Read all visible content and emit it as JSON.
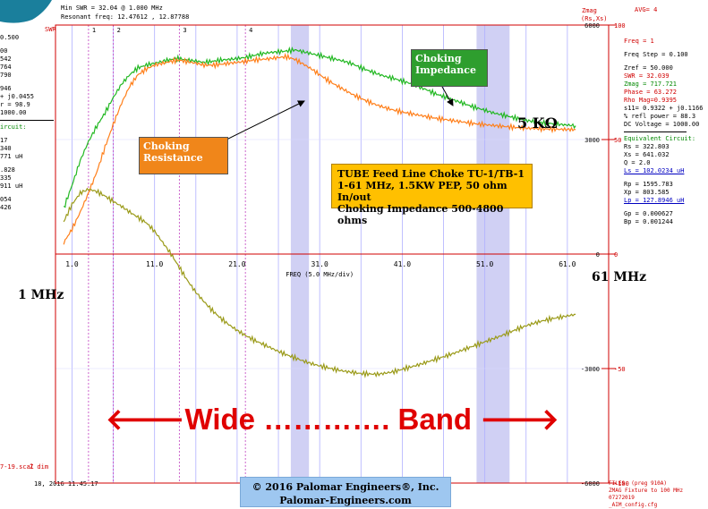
{
  "header": {
    "min_swr": "Min SWR = 32.04 @ 1.000 MHz",
    "resonant": "Resonant freq: 12.47612 , 12.87788",
    "swr_label": "SWR",
    "zmag_label": "Zmag",
    "rsxs_label": "(Rs,Xs)",
    "avg": "AVG= 4"
  },
  "left_panel": {
    "rows": [
      {
        "text": "0.500",
        "color": "black"
      },
      {
        "text": "00",
        "color": "black"
      },
      {
        "text": "542",
        "color": "black"
      },
      {
        "text": "764",
        "color": "black"
      },
      {
        "text": "790",
        "color": "black"
      },
      {
        "text": "946",
        "color": "black"
      },
      {
        "text": "+ j0.0455",
        "color": "black"
      },
      {
        "text": "r = 98.9",
        "color": "black"
      },
      {
        "text": "1000.00",
        "color": "black"
      },
      {
        "text": "ircuit:",
        "color": "green"
      },
      {
        "text": "17",
        "color": "black"
      },
      {
        "text": "340",
        "color": "black"
      },
      {
        "text": "771 uH",
        "color": "black"
      },
      {
        "text": ".828",
        "color": "black"
      },
      {
        "text": "335",
        "color": "black"
      },
      {
        "text": "911 uH",
        "color": "black"
      },
      {
        "text": "054",
        "color": "black"
      },
      {
        "text": "426",
        "color": "black"
      }
    ],
    "footer": "7-19.scal",
    "footer2": "Z dim",
    "date": "18, 2016  11:45:17"
  },
  "right_panel": {
    "freq": "Freq = 1",
    "freq_step": "Freq Step = 0.100",
    "zref": "Zref =  50.000",
    "swr": "SWR = 32.039",
    "zmag": "Zmag = 717.721",
    "phase": "Phase =  63.272",
    "rho": "Rho Mag=0.9395",
    "s11": "s11= 0.9322 + j0.1166",
    "refl": "% refl power = 88.3",
    "dc": "DC Voltage = 1000.00",
    "equiv": "Equivalent Circuit:",
    "rs": "Rs = 322.803",
    "xs": "Xs = 641.032",
    "q": "Q = 2.0",
    "ls": "Ls = 102.0234 uH",
    "rp": "Rp = 1595.783",
    "xp": "Xp = 803.585",
    "lp": "Lp = 127.8946 uH",
    "gp": "Gp = 0.000627",
    "bp": "Bp = 0.001244"
  },
  "files": {
    "line1": "FILES: (preg 910A)",
    "line2": "ZMAG Fixture to 100 MHz 07272019",
    "line3": "_AIM_config.cfg"
  },
  "annotations": {
    "choking_impedance": "Choking\nImpedance",
    "choking_resistance": "Choking\nResistance",
    "five_k": "5 KΩ",
    "one_mhz": "1 MHz",
    "sixty_one_mhz": "61 MHz",
    "wide_band": "🡐Wide …………. Band 🡒",
    "choke_box_lines": [
      "TUBE Feed Line Choke TU-1/TB-1",
      "1-61 MHz, 1.5KW PEP, 50 ohm In/out",
      "Choking Impedance 500-4800 ohms"
    ],
    "copyright_line1": "© 2016 Palomar Engineers®, Inc.",
    "copyright_line2": "Palomar-Engineers.com"
  },
  "colors": {
    "zmag": "#22b822",
    "rs": "#ff7f1a",
    "xs": "#9a9a18",
    "grid": "#b0b0ff",
    "band": "#d0d0f4",
    "axis_red": "#d00000",
    "choke_box": "#ffc000",
    "callout_green": "#2e9e2e",
    "callout_orange": "#f0861a",
    "copyright_bg": "#9ec7f0",
    "wide_band_text": "#e00000"
  },
  "chart_data": {
    "type": "line",
    "xlabel": "FREQ (5.0 MHz/div)",
    "xlim": [
      -1,
      66
    ],
    "x_ticks": [
      "1.0",
      "11.0",
      "21.0",
      "31.0",
      "41.0",
      "51.0",
      "61.0"
    ],
    "y_right_ticks": [
      "6000",
      "3000",
      "0",
      "-3000",
      "-6000"
    ],
    "y_left_ticks": [
      "100",
      "50",
      "0",
      "-50",
      "-100"
    ],
    "ylim": [
      -6000,
      6000
    ],
    "markers_top": [
      "1",
      "2",
      "3",
      "4"
    ],
    "marker_freqs": [
      3,
      6,
      14,
      22
    ],
    "series": [
      {
        "key": "zmag",
        "x": [
          0,
          1,
          2,
          3,
          4,
          5,
          6,
          7,
          8,
          9,
          10,
          11,
          12,
          13,
          14,
          15,
          16,
          17,
          18,
          19,
          20,
          21,
          22,
          23,
          24,
          25,
          26,
          27,
          28,
          29,
          30,
          31,
          32,
          33,
          34,
          35,
          36,
          37,
          38,
          39,
          40,
          41,
          42,
          43,
          44,
          45,
          46,
          47,
          48,
          49,
          50,
          51,
          52,
          53,
          54,
          55,
          56,
          57,
          58,
          59,
          60,
          61,
          62
        ],
        "values": [
          1200,
          1800,
          2450,
          2950,
          3350,
          3700,
          4100,
          4450,
          4700,
          4880,
          4950,
          5000,
          5050,
          5100,
          5120,
          5080,
          5060,
          5020,
          5050,
          5080,
          5100,
          5120,
          5150,
          5200,
          5250,
          5280,
          5300,
          5320,
          5350,
          5300,
          5250,
          5200,
          5150,
          5100,
          5050,
          4980,
          4880,
          4800,
          4720,
          4650,
          4600,
          4530,
          4470,
          4380,
          4300,
          4200,
          4130,
          4050,
          3980,
          3900,
          3830,
          3770,
          3700,
          3650,
          3600,
          3550,
          3500,
          3470,
          3440,
          3420,
          3400,
          3380,
          3360
        ]
      },
      {
        "key": "rs",
        "x": [
          0,
          1,
          2,
          3,
          4,
          5,
          6,
          7,
          8,
          9,
          10,
          11,
          12,
          13,
          14,
          15,
          16,
          17,
          18,
          19,
          20,
          21,
          22,
          23,
          24,
          25,
          26,
          27,
          28,
          29,
          30,
          31,
          32,
          33,
          34,
          35,
          36,
          37,
          38,
          39,
          40,
          41,
          42,
          43,
          44,
          45,
          46,
          47,
          48,
          49,
          50,
          51,
          52,
          53,
          54,
          55,
          56,
          57,
          58,
          59,
          60,
          61,
          62
        ],
        "values": [
          300,
          650,
          1100,
          1600,
          2150,
          2800,
          3400,
          3950,
          4400,
          4700,
          4850,
          4950,
          5000,
          5050,
          5080,
          5040,
          5000,
          4950,
          4950,
          4970,
          5000,
          5020,
          5050,
          5080,
          5100,
          5120,
          5150,
          5170,
          5100,
          4980,
          4850,
          4700,
          4550,
          4420,
          4300,
          4180,
          4080,
          3980,
          3900,
          3830,
          3770,
          3720,
          3680,
          3640,
          3600,
          3560,
          3530,
          3500,
          3470,
          3440,
          3410,
          3390,
          3370,
          3350,
          3330,
          3310,
          3300,
          3290,
          3280,
          3275,
          3270,
          3265,
          3260
        ]
      },
      {
        "key": "xs",
        "x": [
          0,
          1,
          2,
          3,
          4,
          5,
          6,
          7,
          8,
          9,
          10,
          11,
          12,
          13,
          14,
          15,
          16,
          17,
          18,
          19,
          20,
          21,
          22,
          23,
          24,
          25,
          26,
          27,
          28,
          29,
          30,
          31,
          32,
          33,
          34,
          35,
          36,
          37,
          38,
          39,
          40,
          41,
          42,
          43,
          44,
          45,
          46,
          47,
          48,
          49,
          50,
          51,
          52,
          53,
          54,
          55,
          56,
          57,
          58,
          59,
          60,
          61,
          62
        ],
        "values": [
          850,
          1300,
          1600,
          1700,
          1640,
          1520,
          1380,
          1250,
          1100,
          960,
          820,
          600,
          300,
          0,
          -350,
          -700,
          -1000,
          -1250,
          -1480,
          -1680,
          -1850,
          -2000,
          -2130,
          -2250,
          -2350,
          -2450,
          -2550,
          -2640,
          -2720,
          -2800,
          -2870,
          -2930,
          -2980,
          -3030,
          -3070,
          -3100,
          -3130,
          -3140,
          -3150,
          -3120,
          -3080,
          -3020,
          -2960,
          -2900,
          -2830,
          -2760,
          -2690,
          -2620,
          -2540,
          -2460,
          -2380,
          -2300,
          -2220,
          -2140,
          -2050,
          -1960,
          -1880,
          -1810,
          -1750,
          -1700,
          -1660,
          -1620,
          -1580
        ]
      }
    ]
  }
}
